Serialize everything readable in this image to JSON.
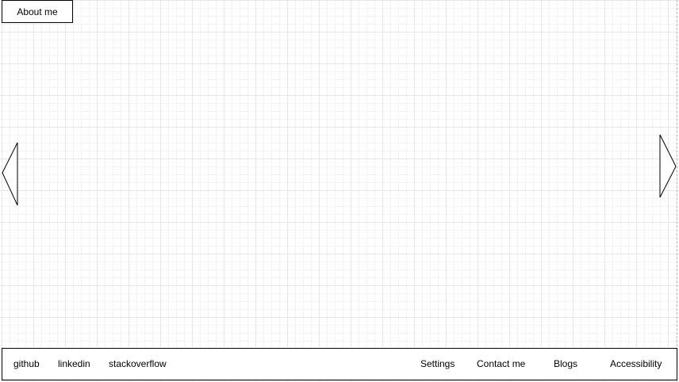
{
  "header": {
    "about_label": "About me"
  },
  "carousel": {
    "prev_icon": "triangle-left-icon",
    "next_icon": "triangle-right-icon"
  },
  "footer": {
    "social_links": [
      "github",
      "linkedin",
      "stackoverflow"
    ],
    "nav_links": [
      "Settings",
      "Contact me",
      "Blogs",
      "Accessibility"
    ]
  }
}
